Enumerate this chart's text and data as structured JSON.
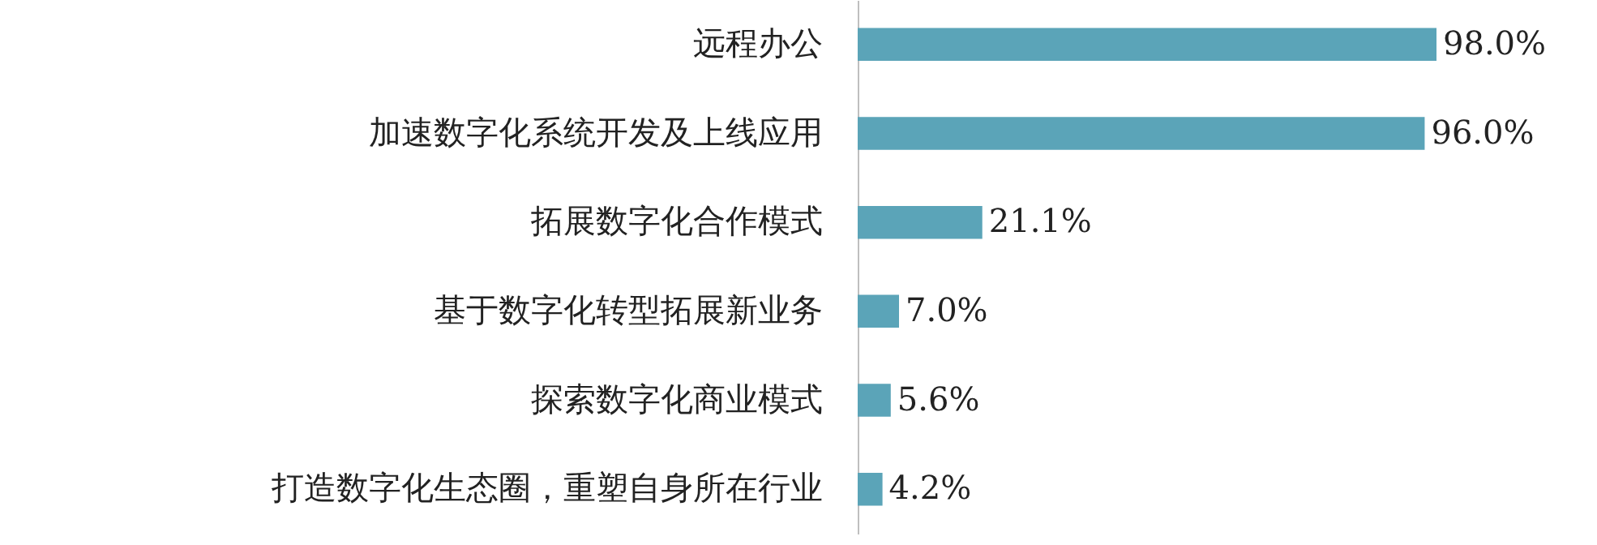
{
  "chart_data": {
    "type": "bar",
    "orientation": "horizontal",
    "categories": [
      "远程办公",
      "加速数字化系统开发及上线应用",
      "拓展数字化合作模式",
      "基于数字化转型拓展新业务",
      "探索数字化商业模式",
      "打造数字化生态圈，重塑自身所在行业"
    ],
    "values": [
      98.0,
      96.0,
      21.1,
      7.0,
      5.6,
      4.2
    ],
    "value_labels": [
      "98.0%",
      "96.0%",
      "21.1%",
      "7.0%",
      "5.6%",
      "4.2%"
    ],
    "color": "#5ba4b8",
    "grid": false
  }
}
